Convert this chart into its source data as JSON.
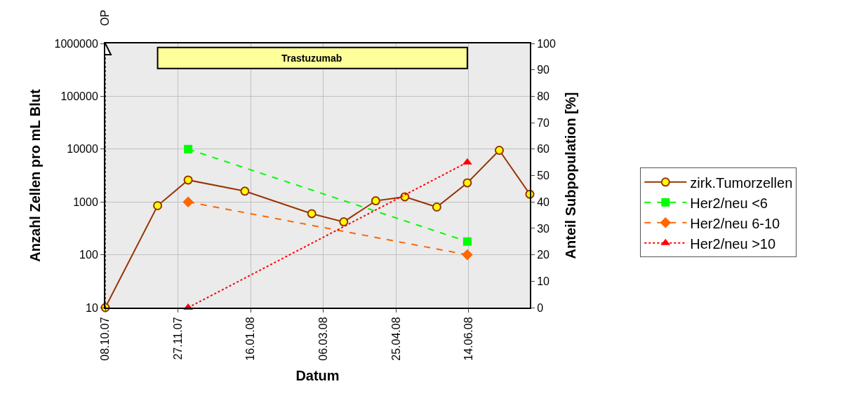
{
  "chart_data": {
    "type": "line",
    "xlabel": "Datum",
    "ylabel": "Anzahl Zellen pro mL Blut",
    "y2label": "Anteil Subpopulation [%]",
    "xlim": [
      "2007-10-08",
      "2008-07-26"
    ],
    "xticks": [
      {
        "value": "2007-10-08",
        "label": "08.10.07"
      },
      {
        "value": "2007-11-27",
        "label": "27.11.07"
      },
      {
        "value": "2008-01-16",
        "label": "16.01.08"
      },
      {
        "value": "2008-03-06",
        "label": "06.03.08"
      },
      {
        "value": "2008-04-25",
        "label": "25.04.08"
      },
      {
        "value": "2008-06-14",
        "label": "14.06.08"
      }
    ],
    "ylim": [
      10,
      1000000
    ],
    "yticks": [
      10,
      100,
      1000,
      10000,
      100000,
      1000000
    ],
    "y2lim": [
      0,
      100
    ],
    "y2ticks": [
      0,
      10,
      20,
      30,
      40,
      50,
      60,
      70,
      80,
      90,
      100
    ],
    "log": "y",
    "grid": true,
    "legend": "right",
    "series": [
      {
        "name": "zirk.Tumorzellen",
        "color": "#993300",
        "marker": "circle",
        "line_style": "solid",
        "x": [
          "2007-10-08",
          "2007-11-13",
          "2007-12-04",
          "2008-01-12",
          "2008-02-27",
          "2008-03-20",
          "2008-04-11",
          "2008-05-01",
          "2008-05-23",
          "2008-06-13",
          "2008-07-05",
          "2008-07-26"
        ],
        "values": [
          10,
          850,
          2600,
          1600,
          600,
          420,
          1050,
          1250,
          800,
          2300,
          9500,
          1400
        ]
      },
      {
        "name": "Her2/neu <6",
        "color": "#00ff00",
        "marker": "square",
        "line_style": "dashed",
        "axis": "y2",
        "x": [
          "2007-12-04",
          "2008-06-13"
        ],
        "values": [
          60,
          25
        ]
      },
      {
        "name": "Her2/neu 6-10",
        "color": "#ff6600",
        "marker": "diamond",
        "line_style": "dashed",
        "axis": "y2",
        "x": [
          "2007-12-04",
          "2008-06-13"
        ],
        "values": [
          40,
          20
        ]
      },
      {
        "name": "Her2/neu >10",
        "color": "#ff0000",
        "marker": "triangle",
        "line_style": "dotted",
        "axis": "y2",
        "x": [
          "2007-12-04",
          "2008-06-13"
        ],
        "values": [
          0,
          55
        ]
      }
    ],
    "ref_lines": [
      {
        "axis": "x",
        "value": "2007-10-08",
        "label": "OP",
        "color": "#ff0000",
        "line_style": "dotted"
      }
    ],
    "bands": [
      {
        "axis": "x",
        "from": "2007-11-13",
        "to": "2008-06-13",
        "label": "Trastuzumab",
        "color": "#ffff99"
      }
    ]
  }
}
